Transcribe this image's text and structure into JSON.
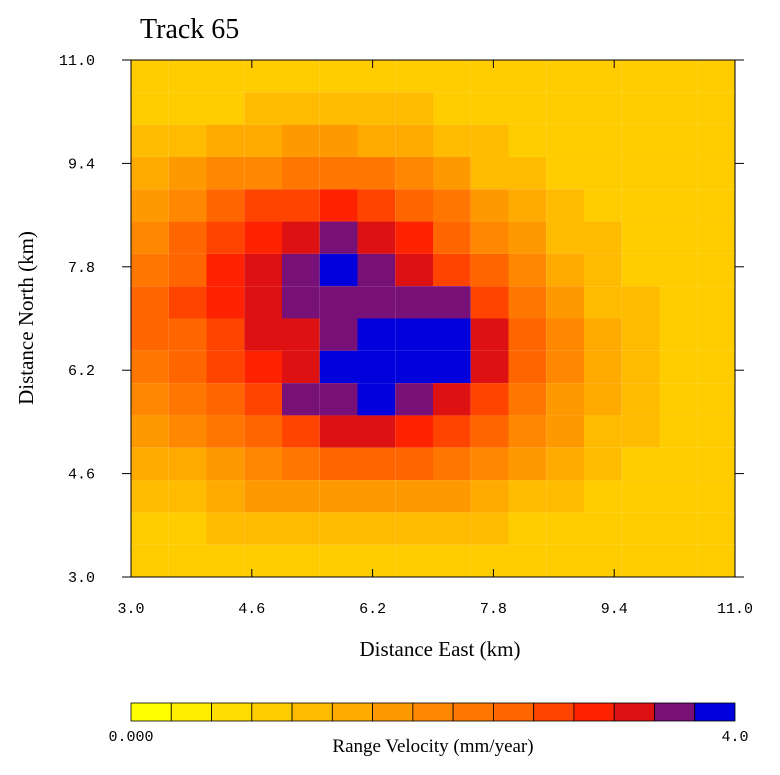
{
  "chart_data": {
    "type": "heatmap",
    "title": "Track 65",
    "xlabel": "Distance East (km)",
    "ylabel": "Distance North (km)",
    "xlim": [
      3,
      11
    ],
    "ylim": [
      3,
      11
    ],
    "xticks": [
      {
        "value": 3,
        "label": "3.0"
      },
      4.6,
      6.2,
      7.8,
      9.4,
      {
        "value": 11,
        "label": "11.0"
      }
    ],
    "yticks": [
      {
        "value": 3,
        "label": "3.0"
      },
      4.6,
      6.2,
      7.8,
      9.4,
      {
        "value": 11,
        "label": "11.0"
      }
    ],
    "cell_size": 0.5,
    "x": [
      3.25,
      3.75,
      4.25,
      4.75,
      5.25,
      5.75,
      6.25,
      6.75,
      7.25,
      7.75,
      8.25,
      8.75,
      9.25,
      9.75,
      10.25,
      10.75
    ],
    "y": [
      10.75,
      10.25,
      9.75,
      9.25,
      8.75,
      8.25,
      7.75,
      7.25,
      6.75,
      6.25,
      5.75,
      5.25,
      4.75,
      4.25,
      3.75,
      3.25
    ],
    "z": [
      [
        0.8,
        0.8,
        0.9,
        0.9,
        1.0,
        1.0,
        1.0,
        1.0,
        0.9,
        0.9,
        0.9,
        0.8,
        0.8,
        0.8,
        0.8,
        0.8
      ],
      [
        0.9,
        1.0,
        1.0,
        1.1,
        1.2,
        1.2,
        1.2,
        1.1,
        1.0,
        1.0,
        0.9,
        0.9,
        0.8,
        0.8,
        0.8,
        0.8
      ],
      [
        1.1,
        1.2,
        1.4,
        1.5,
        1.6,
        1.6,
        1.5,
        1.4,
        1.2,
        1.1,
        1.0,
        0.9,
        0.8,
        0.8,
        0.8,
        0.8
      ],
      [
        1.4,
        1.6,
        1.9,
        2.1,
        2.3,
        2.3,
        2.2,
        1.9,
        1.6,
        1.3,
        1.1,
        1.0,
        0.9,
        0.8,
        0.8,
        0.8
      ],
      [
        1.8,
        2.1,
        2.4,
        2.7,
        2.9,
        3.0,
        2.9,
        2.6,
        2.2,
        1.8,
        1.4,
        1.1,
        1.0,
        0.9,
        0.8,
        0.8
      ],
      [
        2.1,
        2.4,
        2.8,
        3.1,
        3.4,
        3.5,
        3.3,
        3.0,
        2.6,
        2.1,
        1.6,
        1.3,
        1.1,
        0.9,
        0.9,
        0.8
      ],
      [
        2.3,
        2.6,
        3.0,
        3.3,
        3.7,
        3.8,
        3.6,
        3.2,
        2.9,
        2.4,
        1.9,
        1.5,
        1.2,
        1.0,
        0.9,
        0.9
      ],
      [
        2.4,
        2.7,
        3.0,
        3.3,
        3.6,
        3.7,
        3.6,
        3.7,
        3.6,
        2.8,
        2.2,
        1.7,
        1.3,
        1.1,
        1.0,
        0.9
      ],
      [
        2.4,
        2.6,
        2.9,
        3.2,
        3.4,
        3.5,
        3.8,
        3.9,
        3.9,
        3.4,
        2.5,
        1.9,
        1.4,
        1.2,
        1.0,
        0.9
      ],
      [
        2.2,
        2.5,
        2.8,
        3.1,
        3.4,
        3.8,
        3.9,
        3.9,
        3.8,
        3.2,
        2.5,
        1.9,
        1.4,
        1.2,
        1.0,
        0.9
      ],
      [
        2.0,
        2.2,
        2.5,
        2.9,
        3.5,
        3.7,
        3.8,
        3.7,
        3.3,
        2.8,
        2.3,
        1.8,
        1.4,
        1.1,
        1.0,
        0.9
      ],
      [
        1.7,
        1.9,
        2.2,
        2.5,
        2.9,
        3.2,
        3.3,
        3.1,
        2.8,
        2.4,
        2.0,
        1.6,
        1.3,
        1.1,
        0.9,
        0.8
      ],
      [
        1.4,
        1.5,
        1.8,
        2.1,
        2.3,
        2.5,
        2.5,
        2.4,
        2.2,
        1.9,
        1.6,
        1.4,
        1.1,
        1.0,
        0.9,
        0.8
      ],
      [
        1.1,
        1.2,
        1.4,
        1.6,
        1.7,
        1.8,
        1.8,
        1.8,
        1.6,
        1.5,
        1.3,
        1.1,
        1.0,
        0.9,
        0.8,
        0.8
      ],
      [
        0.9,
        1.0,
        1.1,
        1.2,
        1.3,
        1.3,
        1.3,
        1.3,
        1.2,
        1.1,
        1.0,
        0.9,
        0.8,
        0.8,
        0.8,
        0.8
      ],
      [
        0.8,
        0.8,
        0.9,
        1.0,
        1.0,
        1.0,
        1.0,
        1.0,
        0.9,
        0.9,
        0.8,
        0.8,
        0.8,
        0.8,
        0.8,
        0.8
      ]
    ],
    "colorbar": {
      "label": "Range Velocity (mm/year)",
      "range": [
        0,
        4
      ],
      "ticks": [
        {
          "value": 0,
          "label": "0.000"
        },
        {
          "value": 4,
          "label": "4.0"
        }
      ],
      "colors": [
        "#ffff00",
        "#ffee00",
        "#ffdd00",
        "#ffcc00",
        "#ffbb00",
        "#ffaa00",
        "#ff9900",
        "#ff8800",
        "#ff7700",
        "#ff6600",
        "#ff4400",
        "#ff2200",
        "#dd1111",
        "#771177",
        "#0000dd"
      ]
    }
  }
}
